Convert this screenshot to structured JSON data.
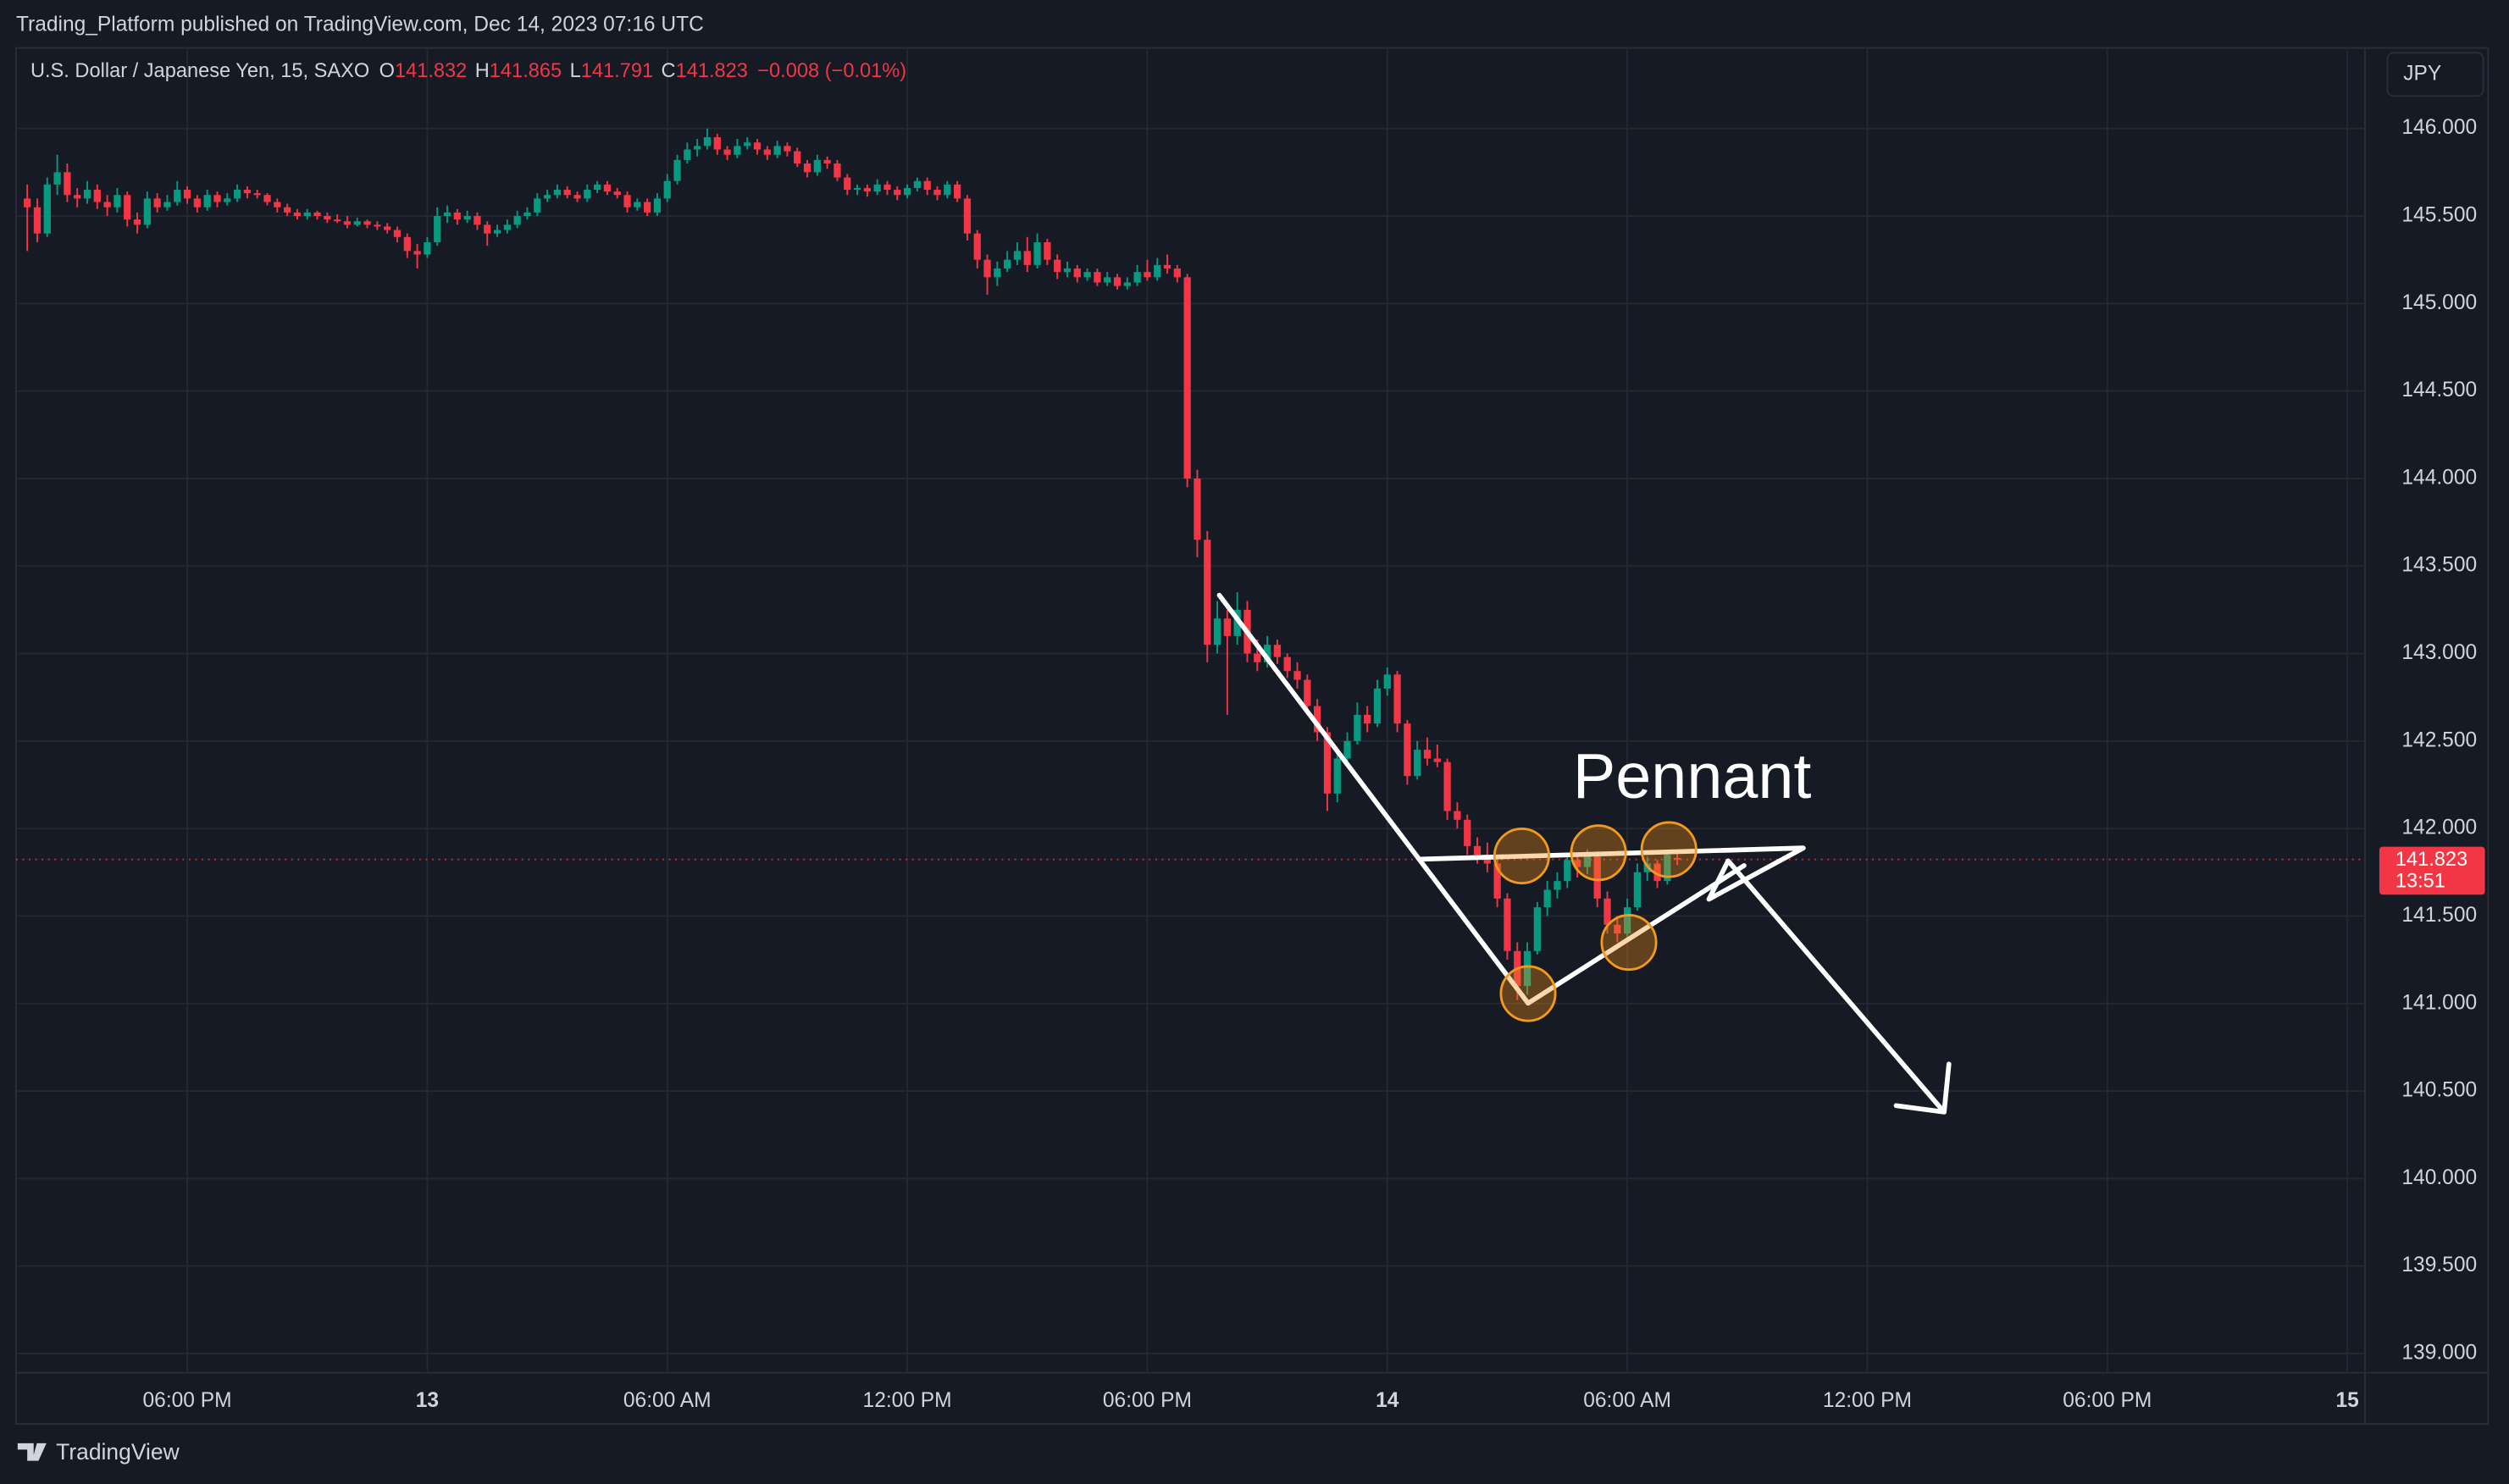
{
  "header": {
    "published": "Trading_Platform published on TradingView.com, Dec 14, 2023 07:16 UTC",
    "brand": "TradingView"
  },
  "chart_data": {
    "type": "candlestick",
    "symbol": "U.S. Dollar / Japanese Yen, 15, SAXO",
    "legend_labels": [
      "O",
      "H",
      "L",
      "C"
    ],
    "change": "−0.008 (−0.01%)",
    "currency": "JPY",
    "countdown": "13:51",
    "annotations": [
      "Pennant"
    ],
    "up_color": "#089981",
    "down_color": "#f23645",
    "grid": true,
    "xlim": [
      13.72,
      72.44
    ],
    "xticks": [
      {
        "value": 18,
        "label": "06:00 PM"
      },
      {
        "value": 24,
        "label": "13"
      },
      {
        "value": 30,
        "label": "06:00 AM"
      },
      {
        "value": 36,
        "label": "12:00 PM"
      },
      {
        "value": 42,
        "label": "06:00 PM"
      },
      {
        "value": 48,
        "label": "14"
      },
      {
        "value": 54,
        "label": "06:00 AM"
      },
      {
        "value": 60,
        "label": "12:00 PM"
      },
      {
        "value": 66,
        "label": "06:00 PM"
      },
      {
        "value": 72,
        "label": "15"
      }
    ],
    "ylim": [
      138.89,
      146.46
    ],
    "yticks": [
      {
        "value": 139,
        "label": "139.000"
      },
      {
        "value": 139.5,
        "label": "139.500"
      },
      {
        "value": 140,
        "label": "140.000"
      },
      {
        "value": 140.5,
        "label": "140.500"
      },
      {
        "value": 141,
        "label": "141.000"
      },
      {
        "value": 141.5,
        "label": "141.500"
      },
      {
        "value": 142,
        "label": "142.000"
      },
      {
        "value": 142.5,
        "label": "142.500"
      },
      {
        "value": 143,
        "label": "143.000"
      },
      {
        "value": 143.5,
        "label": "143.500"
      },
      {
        "value": 144,
        "label": "144.000"
      },
      {
        "value": 144.5,
        "label": "144.500"
      },
      {
        "value": 145,
        "label": "145.000"
      },
      {
        "value": 145.5,
        "label": "145.500"
      },
      {
        "value": 146,
        "label": "146.000"
      }
    ],
    "x": [
      14,
      14.25,
      14.5,
      14.75,
      15,
      15.25,
      15.5,
      15.75,
      16,
      16.25,
      16.5,
      16.75,
      17,
      17.25,
      17.5,
      17.75,
      18,
      18.25,
      18.5,
      18.75,
      19,
      19.25,
      19.5,
      19.75,
      20,
      20.25,
      20.5,
      20.75,
      21,
      21.25,
      21.5,
      21.75,
      22,
      22.25,
      22.5,
      22.75,
      23,
      23.25,
      23.5,
      23.75,
      24,
      24.25,
      24.5,
      24.75,
      25,
      25.25,
      25.5,
      25.75,
      26,
      26.25,
      26.5,
      26.75,
      27,
      27.25,
      27.5,
      27.75,
      28,
      28.25,
      28.5,
      28.75,
      29,
      29.25,
      29.5,
      29.75,
      30,
      30.25,
      30.5,
      30.75,
      31,
      31.25,
      31.5,
      31.75,
      32,
      32.25,
      32.5,
      32.75,
      33,
      33.25,
      33.5,
      33.75,
      34,
      34.25,
      34.5,
      34.75,
      35,
      35.25,
      35.5,
      35.75,
      36,
      36.25,
      36.5,
      36.75,
      37,
      37.25,
      37.5,
      37.75,
      38,
      38.25,
      38.5,
      38.75,
      39,
      39.25,
      39.5,
      39.75,
      40,
      40.25,
      40.5,
      40.75,
      41,
      41.25,
      41.5,
      41.75,
      42,
      42.25,
      42.5,
      42.75,
      43,
      43.25,
      43.5,
      43.75,
      44,
      44.25,
      44.5,
      44.75,
      45,
      45.25,
      45.5,
      45.75,
      46,
      46.25,
      46.5,
      46.75,
      47,
      47.25,
      47.5,
      47.75,
      48,
      48.25,
      48.5,
      48.75,
      49,
      49.25,
      49.5,
      49.75,
      50,
      50.25,
      50.5,
      50.75,
      51,
      51.25,
      51.5,
      51.75,
      52,
      52.25,
      52.5,
      52.75,
      53,
      53.25,
      53.5,
      53.75,
      54,
      54.25,
      54.5,
      54.75,
      55,
      55.25
    ],
    "ohlc": [
      [
        145.6,
        145.68,
        145.3,
        145.55
      ],
      [
        145.55,
        145.6,
        145.35,
        145.4
      ],
      [
        145.4,
        145.72,
        145.38,
        145.68
      ],
      [
        145.68,
        145.85,
        145.62,
        145.75
      ],
      [
        145.75,
        145.8,
        145.58,
        145.62
      ],
      [
        145.62,
        145.66,
        145.55,
        145.6
      ],
      [
        145.6,
        145.7,
        145.57,
        145.65
      ],
      [
        145.65,
        145.68,
        145.54,
        145.58
      ],
      [
        145.58,
        145.62,
        145.5,
        145.55
      ],
      [
        145.55,
        145.66,
        145.52,
        145.62
      ],
      [
        145.62,
        145.64,
        145.44,
        145.48
      ],
      [
        145.48,
        145.52,
        145.4,
        145.45
      ],
      [
        145.45,
        145.64,
        145.43,
        145.6
      ],
      [
        145.6,
        145.63,
        145.52,
        145.55
      ],
      [
        145.55,
        145.62,
        145.53,
        145.58
      ],
      [
        145.58,
        145.7,
        145.56,
        145.65
      ],
      [
        145.65,
        145.67,
        145.57,
        145.6
      ],
      [
        145.6,
        145.62,
        145.52,
        145.55
      ],
      [
        145.55,
        145.65,
        145.53,
        145.62
      ],
      [
        145.62,
        145.64,
        145.55,
        145.58
      ],
      [
        145.58,
        145.63,
        145.56,
        145.6
      ],
      [
        145.6,
        145.68,
        145.58,
        145.65
      ],
      [
        145.65,
        145.67,
        145.6,
        145.63
      ],
      [
        145.63,
        145.65,
        145.6,
        145.62
      ],
      [
        145.62,
        145.63,
        145.56,
        145.58
      ],
      [
        145.58,
        145.6,
        145.52,
        145.55
      ],
      [
        145.55,
        145.57,
        145.5,
        145.52
      ],
      [
        145.52,
        145.54,
        145.48,
        145.5
      ],
      [
        145.5,
        145.54,
        145.48,
        145.52
      ],
      [
        145.52,
        145.53,
        145.48,
        145.5
      ],
      [
        145.5,
        145.52,
        145.46,
        145.48
      ],
      [
        145.48,
        145.51,
        145.46,
        145.47
      ],
      [
        145.47,
        145.5,
        145.43,
        145.45
      ],
      [
        145.45,
        145.49,
        145.44,
        145.47
      ],
      [
        145.47,
        145.48,
        145.43,
        145.45
      ],
      [
        145.45,
        145.47,
        145.42,
        145.44
      ],
      [
        145.44,
        145.46,
        145.4,
        145.42
      ],
      [
        145.42,
        145.44,
        145.35,
        145.38
      ],
      [
        145.38,
        145.4,
        145.26,
        145.3
      ],
      [
        145.3,
        145.34,
        145.2,
        145.28
      ],
      [
        145.28,
        145.38,
        145.26,
        145.35
      ],
      [
        145.35,
        145.55,
        145.33,
        145.5
      ],
      [
        145.5,
        145.56,
        145.46,
        145.52
      ],
      [
        145.52,
        145.54,
        145.45,
        145.48
      ],
      [
        145.48,
        145.53,
        145.46,
        145.5
      ],
      [
        145.5,
        145.52,
        145.42,
        145.45
      ],
      [
        145.45,
        145.47,
        145.33,
        145.4
      ],
      [
        145.4,
        145.45,
        145.38,
        145.42
      ],
      [
        145.42,
        145.48,
        145.4,
        145.45
      ],
      [
        145.45,
        145.53,
        145.43,
        145.5
      ],
      [
        145.5,
        145.55,
        145.48,
        145.52
      ],
      [
        145.52,
        145.63,
        145.5,
        145.6
      ],
      [
        145.6,
        145.65,
        145.58,
        145.62
      ],
      [
        145.62,
        145.68,
        145.6,
        145.65
      ],
      [
        145.65,
        145.67,
        145.6,
        145.62
      ],
      [
        145.62,
        145.64,
        145.58,
        145.6
      ],
      [
        145.6,
        145.68,
        145.58,
        145.65
      ],
      [
        145.65,
        145.7,
        145.63,
        145.68
      ],
      [
        145.68,
        145.7,
        145.62,
        145.64
      ],
      [
        145.64,
        145.66,
        145.6,
        145.62
      ],
      [
        145.62,
        145.64,
        145.52,
        145.55
      ],
      [
        145.55,
        145.6,
        145.53,
        145.58
      ],
      [
        145.58,
        145.6,
        145.5,
        145.52
      ],
      [
        145.52,
        145.63,
        145.5,
        145.6
      ],
      [
        145.6,
        145.74,
        145.58,
        145.7
      ],
      [
        145.7,
        145.85,
        145.68,
        145.82
      ],
      [
        145.82,
        145.92,
        145.8,
        145.88
      ],
      [
        145.88,
        145.94,
        145.84,
        145.9
      ],
      [
        145.9,
        146.0,
        145.88,
        145.95
      ],
      [
        145.95,
        145.97,
        145.85,
        145.88
      ],
      [
        145.88,
        145.9,
        145.82,
        145.85
      ],
      [
        145.85,
        145.94,
        145.83,
        145.9
      ],
      [
        145.9,
        145.95,
        145.88,
        145.92
      ],
      [
        145.92,
        145.94,
        145.85,
        145.88
      ],
      [
        145.88,
        145.9,
        145.82,
        145.85
      ],
      [
        145.85,
        145.93,
        145.83,
        145.9
      ],
      [
        145.9,
        145.92,
        145.84,
        145.87
      ],
      [
        145.87,
        145.89,
        145.78,
        145.8
      ],
      [
        145.8,
        145.82,
        145.72,
        145.75
      ],
      [
        145.75,
        145.85,
        145.73,
        145.82
      ],
      [
        145.82,
        145.84,
        145.77,
        145.8
      ],
      [
        145.8,
        145.82,
        145.7,
        145.72
      ],
      [
        145.72,
        145.74,
        145.62,
        145.65
      ],
      [
        145.65,
        145.68,
        145.62,
        145.66
      ],
      [
        145.66,
        145.68,
        145.61,
        145.64
      ],
      [
        145.64,
        145.71,
        145.62,
        145.68
      ],
      [
        145.68,
        145.7,
        145.62,
        145.65
      ],
      [
        145.65,
        145.67,
        145.59,
        145.62
      ],
      [
        145.62,
        145.68,
        145.6,
        145.66
      ],
      [
        145.66,
        145.72,
        145.64,
        145.7
      ],
      [
        145.7,
        145.72,
        145.62,
        145.65
      ],
      [
        145.65,
        145.67,
        145.59,
        145.62
      ],
      [
        145.62,
        145.7,
        145.6,
        145.68
      ],
      [
        145.68,
        145.7,
        145.58,
        145.6
      ],
      [
        145.6,
        145.62,
        145.36,
        145.4
      ],
      [
        145.4,
        145.42,
        145.2,
        145.25
      ],
      [
        145.25,
        145.28,
        145.05,
        145.15
      ],
      [
        145.15,
        145.24,
        145.1,
        145.2
      ],
      [
        145.2,
        145.3,
        145.18,
        145.25
      ],
      [
        145.25,
        145.35,
        145.22,
        145.3
      ],
      [
        145.3,
        145.38,
        145.18,
        145.22
      ],
      [
        145.22,
        145.4,
        145.2,
        145.35
      ],
      [
        145.35,
        145.37,
        145.22,
        145.25
      ],
      [
        145.25,
        145.28,
        145.14,
        145.18
      ],
      [
        145.18,
        145.24,
        145.15,
        145.2
      ],
      [
        145.2,
        145.22,
        145.12,
        145.15
      ],
      [
        145.15,
        145.2,
        145.13,
        145.18
      ],
      [
        145.18,
        145.2,
        145.1,
        145.12
      ],
      [
        145.12,
        145.18,
        145.1,
        145.15
      ],
      [
        145.15,
        145.17,
        145.08,
        145.1
      ],
      [
        145.1,
        145.15,
        145.08,
        145.12
      ],
      [
        145.12,
        145.22,
        145.1,
        145.18
      ],
      [
        145.18,
        145.25,
        145.13,
        145.15
      ],
      [
        145.15,
        145.26,
        145.13,
        145.22
      ],
      [
        145.22,
        145.28,
        145.17,
        145.2
      ],
      [
        145.2,
        145.22,
        145.12,
        145.15
      ],
      [
        145.15,
        145.17,
        143.95,
        144.0
      ],
      [
        144.0,
        144.05,
        143.55,
        143.65
      ],
      [
        143.65,
        143.7,
        142.95,
        143.05
      ],
      [
        143.05,
        143.3,
        143.0,
        143.2
      ],
      [
        143.2,
        143.25,
        142.65,
        143.1
      ],
      [
        143.1,
        143.35,
        143.05,
        143.25
      ],
      [
        143.25,
        143.3,
        142.95,
        143.0
      ],
      [
        143.0,
        143.08,
        142.9,
        142.95
      ],
      [
        142.95,
        143.1,
        142.92,
        143.05
      ],
      [
        143.05,
        143.08,
        142.94,
        142.98
      ],
      [
        142.98,
        143.0,
        142.86,
        142.9
      ],
      [
        142.9,
        142.95,
        142.8,
        142.85
      ],
      [
        142.85,
        142.88,
        142.65,
        142.7
      ],
      [
        142.7,
        142.74,
        142.5,
        142.55
      ],
      [
        142.55,
        142.58,
        142.1,
        142.2
      ],
      [
        142.2,
        142.45,
        142.15,
        142.4
      ],
      [
        142.4,
        142.55,
        142.35,
        142.5
      ],
      [
        142.5,
        142.72,
        142.48,
        142.65
      ],
      [
        142.65,
        142.7,
        142.55,
        142.6
      ],
      [
        142.6,
        142.85,
        142.58,
        142.8
      ],
      [
        142.8,
        142.92,
        142.76,
        142.88
      ],
      [
        142.88,
        142.9,
        142.55,
        142.6
      ],
      [
        142.6,
        142.62,
        142.25,
        142.3
      ],
      [
        142.3,
        142.5,
        142.28,
        142.45
      ],
      [
        142.45,
        142.52,
        142.36,
        142.4
      ],
      [
        142.4,
        142.48,
        142.35,
        142.38
      ],
      [
        142.38,
        142.4,
        142.05,
        142.1
      ],
      [
        142.1,
        142.15,
        142.0,
        142.05
      ],
      [
        142.05,
        142.08,
        141.85,
        141.9
      ],
      [
        141.9,
        141.95,
        141.8,
        141.85
      ],
      [
        141.85,
        141.92,
        141.75,
        141.8
      ],
      [
        141.8,
        141.83,
        141.55,
        141.6
      ],
      [
        141.6,
        141.63,
        141.25,
        141.3
      ],
      [
        141.3,
        141.35,
        141.02,
        141.1
      ],
      [
        141.1,
        141.35,
        141.05,
        141.3
      ],
      [
        141.3,
        141.58,
        141.28,
        141.55
      ],
      [
        141.55,
        141.7,
        141.5,
        141.65
      ],
      [
        141.65,
        141.75,
        141.6,
        141.7
      ],
      [
        141.7,
        141.86,
        141.66,
        141.82
      ],
      [
        141.82,
        141.85,
        141.72,
        141.78
      ],
      [
        141.78,
        141.88,
        141.74,
        141.85
      ],
      [
        141.85,
        141.87,
        141.55,
        141.6
      ],
      [
        141.6,
        141.64,
        141.4,
        141.45
      ],
      [
        141.45,
        141.5,
        141.35,
        141.4
      ],
      [
        141.4,
        141.6,
        141.38,
        141.55
      ],
      [
        141.55,
        141.8,
        141.53,
        141.75
      ],
      [
        141.75,
        141.84,
        141.7,
        141.8
      ],
      [
        141.8,
        141.82,
        141.66,
        141.7
      ],
      [
        141.7,
        141.88,
        141.68,
        141.85
      ],
      [
        141.832,
        141.865,
        141.791,
        141.823
      ]
    ]
  }
}
